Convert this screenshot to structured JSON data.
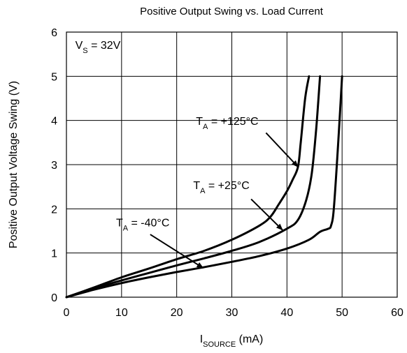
{
  "chart_data": {
    "type": "line",
    "title": "Positive Output Swing vs. Load Current",
    "xlabel": {
      "main": "I",
      "sub": "SOURCE",
      "suffix": " (mA)"
    },
    "ylabel": "Positive Output Voltage Swing (V)",
    "xlim": [
      0,
      60
    ],
    "ylim": [
      0,
      6
    ],
    "x_ticks": [
      0,
      10,
      20,
      30,
      40,
      50,
      60
    ],
    "y_ticks": [
      0,
      1,
      2,
      3,
      4,
      5,
      6
    ],
    "grid": true,
    "colors": {
      "line": "#000000",
      "grid": "#000000",
      "background": "#ffffff"
    },
    "series": [
      {
        "name": "TA = +125°C",
        "points": [
          [
            0,
            0
          ],
          [
            5,
            0.22
          ],
          [
            10,
            0.45
          ],
          [
            15,
            0.65
          ],
          [
            20,
            0.86
          ],
          [
            25,
            1.05
          ],
          [
            30,
            1.3
          ],
          [
            35,
            1.62
          ],
          [
            37,
            1.82
          ],
          [
            38.5,
            2.1
          ],
          [
            40,
            2.4
          ],
          [
            41,
            2.65
          ],
          [
            42,
            2.95
          ],
          [
            42.5,
            3.5
          ],
          [
            43.3,
            4.5
          ],
          [
            44,
            5.0
          ]
        ]
      },
      {
        "name": "TA = +25°C",
        "points": [
          [
            0,
            0
          ],
          [
            5,
            0.2
          ],
          [
            10,
            0.38
          ],
          [
            15,
            0.55
          ],
          [
            20,
            0.72
          ],
          [
            25,
            0.88
          ],
          [
            30,
            1.05
          ],
          [
            35,
            1.25
          ],
          [
            40,
            1.55
          ],
          [
            42,
            1.75
          ],
          [
            43.5,
            2.2
          ],
          [
            44.5,
            2.8
          ],
          [
            45.3,
            3.8
          ],
          [
            46,
            5.0
          ]
        ]
      },
      {
        "name": "TA = -40°C",
        "points": [
          [
            0,
            0
          ],
          [
            5,
            0.17
          ],
          [
            10,
            0.32
          ],
          [
            15,
            0.45
          ],
          [
            20,
            0.57
          ],
          [
            25,
            0.68
          ],
          [
            30,
            0.8
          ],
          [
            35,
            0.93
          ],
          [
            40,
            1.1
          ],
          [
            44,
            1.3
          ],
          [
            46,
            1.48
          ],
          [
            47.5,
            1.55
          ],
          [
            48,
            1.62
          ],
          [
            48.5,
            2.0
          ],
          [
            49.3,
            3.5
          ],
          [
            50,
            5.0
          ]
        ]
      }
    ],
    "annotations": [
      {
        "key": "supply",
        "main": "V",
        "sub": "S",
        "rest": " = 32V",
        "anchor": [
          1.6,
          5.62
        ],
        "arrow_to": null
      },
      {
        "key": "t125",
        "main": "T",
        "sub": "A",
        "rest": " = +125°C",
        "anchor": [
          23.5,
          3.9
        ],
        "arrow_to": [
          42.0,
          2.95
        ]
      },
      {
        "key": "t25",
        "main": "T",
        "sub": "A",
        "rest": " = +25°C",
        "anchor": [
          23,
          2.45
        ],
        "arrow_to": [
          39.2,
          1.52
        ]
      },
      {
        "key": "tm40",
        "main": "T",
        "sub": "A",
        "rest": " = -40°C",
        "anchor": [
          9,
          1.6
        ],
        "arrow_to": [
          24.8,
          0.66
        ]
      }
    ]
  }
}
